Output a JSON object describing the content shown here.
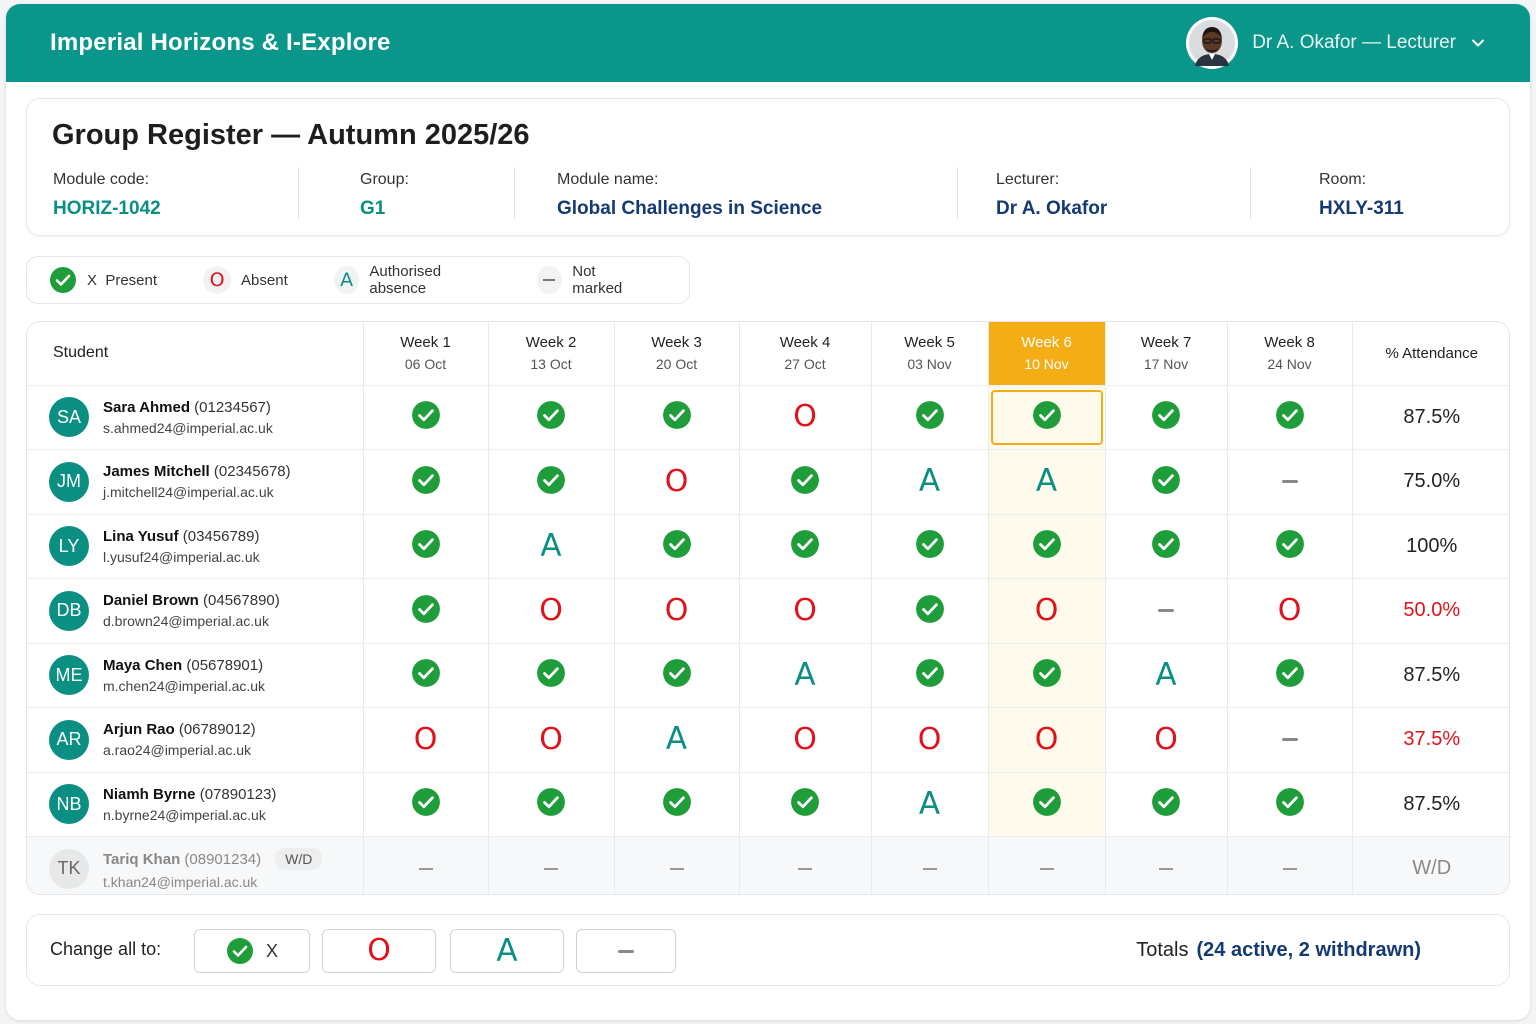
{
  "app": {
    "title": "Imperial Horizons & I-Explore"
  },
  "user": {
    "name": "Dr A. Okafor — Lecturer"
  },
  "page": {
    "title": "Group Register — Autumn 2025/26"
  },
  "info": {
    "module_code": {
      "label": "Module code:",
      "value": "HORIZ-1042"
    },
    "group": {
      "label": "Group:",
      "value": "G1"
    },
    "module_name": {
      "label": "Module name:",
      "value": "Global Challenges in Science"
    },
    "lecturer": {
      "label": "Lecturer:",
      "value": "Dr A. Okafor"
    },
    "room": {
      "label": "Room:",
      "value": "HXLY-311"
    }
  },
  "legend": {
    "present": "X  Present",
    "absent": "Absent",
    "authorised": "Authorised absence",
    "not_marked": "Not marked"
  },
  "table": {
    "student_header": "Student",
    "attendance_header": "% Attendance",
    "current_week_index": 5,
    "weeks": [
      {
        "name": "Week 1",
        "date": "06 Oct"
      },
      {
        "name": "Week 2",
        "date": "13 Oct"
      },
      {
        "name": "Week 3",
        "date": "20 Oct"
      },
      {
        "name": "Week 4",
        "date": "27 Oct"
      },
      {
        "name": "Week 5",
        "date": "03 Nov"
      },
      {
        "name": "Week 6",
        "date": "10 Nov"
      },
      {
        "name": "Week 7",
        "date": "17 Nov"
      },
      {
        "name": "Week 8",
        "date": "24 Nov"
      }
    ],
    "students": [
      {
        "initials": "SA",
        "name": "Sara Ahmed",
        "id": "(01234567)",
        "email": "s.ahmed24@imperial.ac.uk",
        "marks": [
          "P",
          "P",
          "P",
          "O",
          "P",
          "P",
          "P",
          "P"
        ],
        "attendance": "87.5%",
        "low": false,
        "withdrawn": false
      },
      {
        "initials": "JM",
        "name": "James Mitchell",
        "id": "(02345678)",
        "email": "j.mitchell24@imperial.ac.uk",
        "marks": [
          "P",
          "P",
          "O",
          "P",
          "A",
          "A",
          "P",
          "-"
        ],
        "attendance": "75.0%",
        "low": false,
        "withdrawn": false
      },
      {
        "initials": "LY",
        "name": "Lina Yusuf",
        "id": "(03456789)",
        "email": "l.yusuf24@imperial.ac.uk",
        "marks": [
          "P",
          "A",
          "P",
          "P",
          "P",
          "P",
          "P",
          "P"
        ],
        "attendance": "100%",
        "low": false,
        "withdrawn": false
      },
      {
        "initials": "DB",
        "name": "Daniel Brown",
        "id": "(04567890)",
        "email": "d.brown24@imperial.ac.uk",
        "marks": [
          "P",
          "O",
          "O",
          "O",
          "P",
          "O",
          "-",
          "O"
        ],
        "attendance": "50.0%",
        "low": true,
        "withdrawn": false
      },
      {
        "initials": "ME",
        "name": "Maya Chen",
        "id": "(05678901)",
        "email": "m.chen24@imperial.ac.uk",
        "marks": [
          "P",
          "P",
          "P",
          "A",
          "P",
          "P",
          "A",
          "P"
        ],
        "attendance": "87.5%",
        "low": false,
        "withdrawn": false
      },
      {
        "initials": "AR",
        "name": "Arjun Rao",
        "id": "(06789012)",
        "email": "a.rao24@imperial.ac.uk",
        "marks": [
          "O",
          "O",
          "A",
          "O",
          "O",
          "O",
          "O",
          "-"
        ],
        "attendance": "37.5%",
        "low": true,
        "withdrawn": false
      },
      {
        "initials": "NB",
        "name": "Niamh Byrne",
        "id": "(07890123)",
        "email": "n.byrne24@imperial.ac.uk",
        "marks": [
          "P",
          "P",
          "P",
          "P",
          "A",
          "P",
          "P",
          "P"
        ],
        "attendance": "87.5%",
        "low": false,
        "withdrawn": false
      },
      {
        "initials": "TK",
        "name": "Tariq Khan",
        "id": "(08901234)",
        "email": "t.khan24@imperial.ac.uk",
        "badge": "W/D",
        "marks": [
          "-",
          "-",
          "-",
          "-",
          "-",
          "-",
          "-",
          "-"
        ],
        "attendance": "W/D",
        "low": false,
        "withdrawn": true
      }
    ]
  },
  "bulk": {
    "label": "Change all to:",
    "present_label": "X"
  },
  "totals": {
    "label": "Totals",
    "value": "(24 active, 2 withdrawn)"
  },
  "colors": {
    "brand": "#0a968a",
    "current_week": "#f5ad16",
    "present": "#1f9d3a",
    "absent": "#e0131b",
    "authorised": "#0a8f82",
    "low": "#e0131b"
  }
}
